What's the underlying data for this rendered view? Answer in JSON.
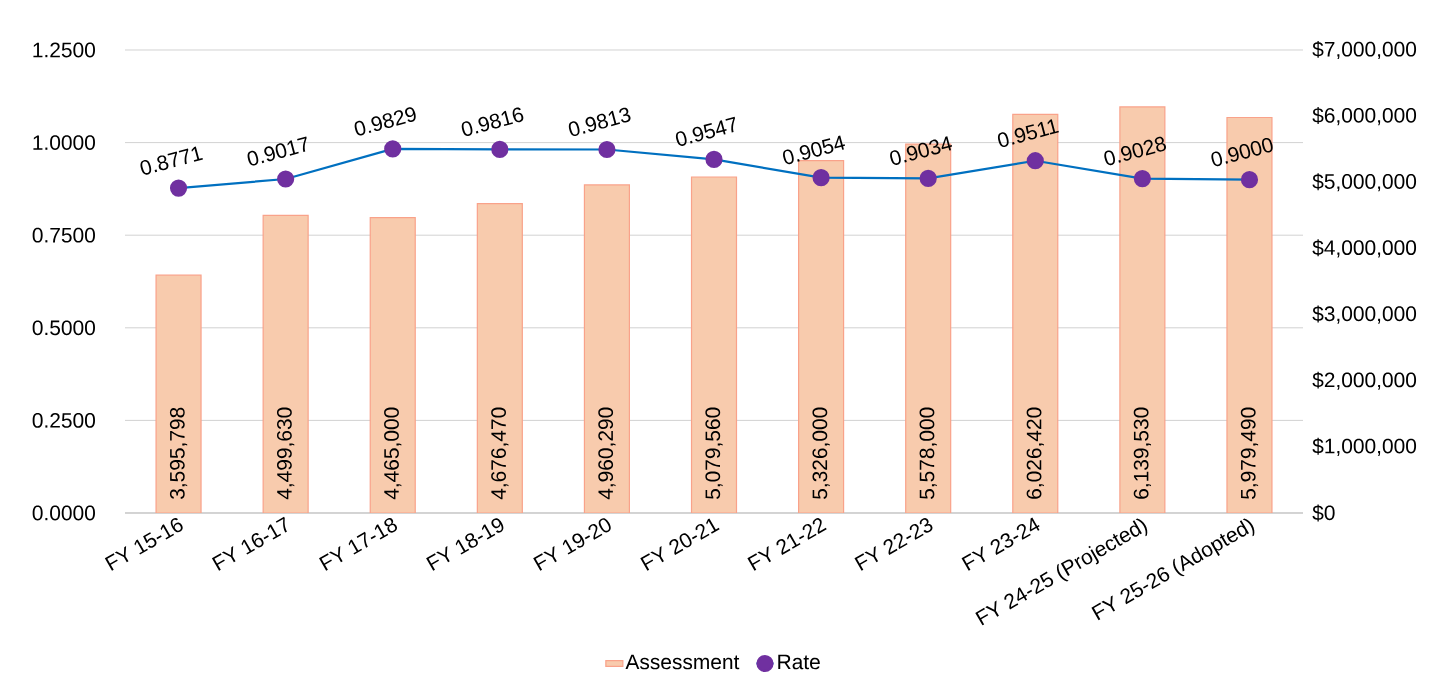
{
  "chart_data": {
    "type": "bar",
    "categories": [
      "FY 15-16",
      "FY 16-17",
      "FY 17-18",
      "FY 18-19",
      "FY 19-20",
      "FY 20-21",
      "FY 21-22",
      "FY 22-23",
      "FY 23-24",
      "FY 24-25 (Projected)",
      "FY 25-26 (Adopted)"
    ],
    "series": [
      {
        "name": "Assessment",
        "axis": "y2",
        "color": "#f8cbad",
        "values": [
          3595798,
          4499630,
          4465000,
          4676470,
          4960290,
          5079560,
          5326000,
          5578000,
          6026420,
          6139530,
          5979490
        ],
        "value_labels": [
          "3,595,798",
          "4,499,630",
          "4,465,000",
          "4,676,470",
          "4,960,290",
          "5,079,560",
          "5,326,000",
          "5,578,000",
          "6,026,420",
          "6,139,530",
          "5,979,490"
        ]
      },
      {
        "name": "Rate",
        "type": "line",
        "color": "#0070c0",
        "values": [
          0.8771,
          0.9017,
          0.9829,
          0.9816,
          0.9813,
          0.9547,
          0.9054,
          0.9034,
          0.9511,
          0.9028,
          0.9
        ],
        "value_labels": [
          "0.8771",
          "0.9017",
          "0.9829",
          "0.9816",
          "0.9813",
          "0.9547",
          "0.9054",
          "0.9034",
          "0.9511",
          "0.9028",
          "0.9000"
        ]
      }
    ],
    "ylim": [
      0,
      1.25
    ],
    "yticks": [
      {
        "value": 0,
        "label": "0.0000"
      },
      {
        "value": 0.25,
        "label": "0.2500"
      },
      {
        "value": 0.5,
        "label": "0.5000"
      },
      {
        "value": 0.75,
        "label": "0.7500"
      },
      {
        "value": 1,
        "label": "1.0000"
      },
      {
        "value": 1.25,
        "label": "1.2500"
      }
    ],
    "y2lim": [
      0,
      7000000
    ],
    "y2ticks": [
      {
        "value": 0,
        "label": "$0"
      },
      {
        "value": 1000000,
        "label": "$1,000,000"
      },
      {
        "value": 2000000,
        "label": "$2,000,000"
      },
      {
        "value": 3000000,
        "label": "$3,000,000"
      },
      {
        "value": 4000000,
        "label": "$4,000,000"
      },
      {
        "value": 5000000,
        "label": "$5,000,000"
      },
      {
        "value": 6000000,
        "label": "$6,000,000"
      },
      {
        "value": 7000000,
        "label": "$7,000,000"
      }
    ],
    "grid": "y",
    "legend": "bottom",
    "marker": "circle"
  }
}
